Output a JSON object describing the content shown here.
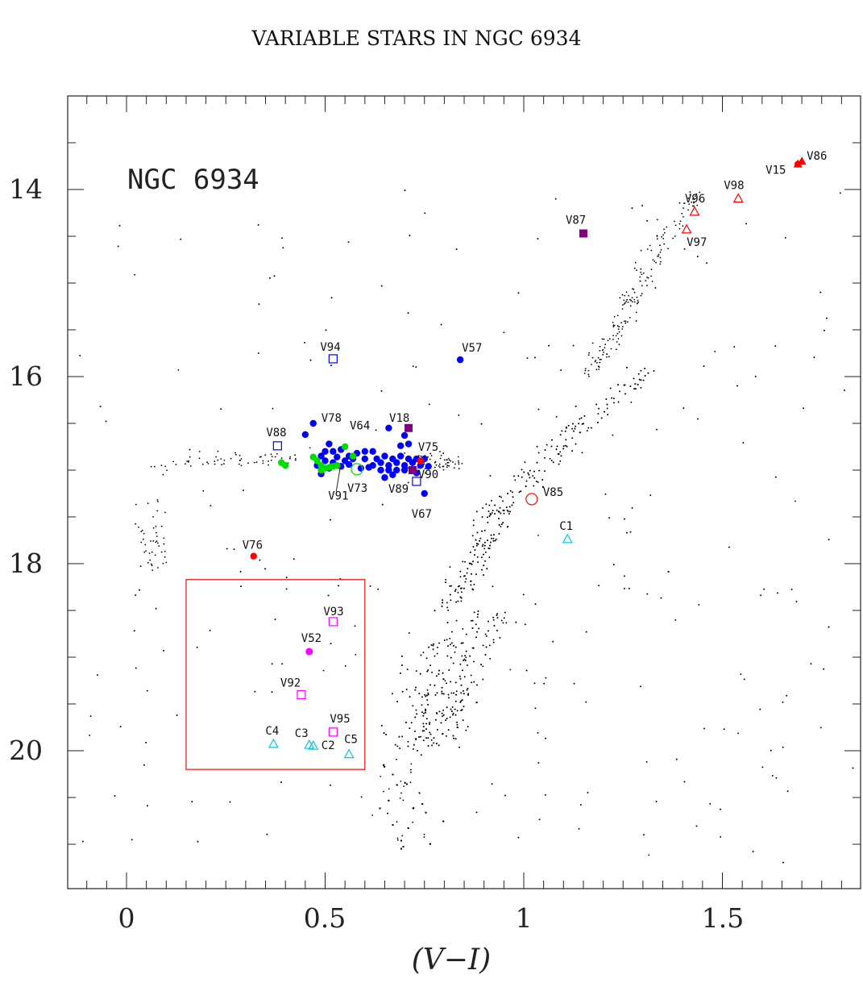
{
  "chart_data": {
    "type": "scatter",
    "title": "VARIABLE STARS IN NGC 6934",
    "xlabel": "(V−I)",
    "ylabel": "",
    "xlim": [
      -0.15,
      1.85
    ],
    "ylim": [
      21.5,
      13.0
    ],
    "y_inverted": true,
    "xticks": [
      "0",
      "0.5",
      "1",
      "1.5"
    ],
    "yticks": [
      "14",
      "16",
      "18",
      "20"
    ],
    "annotation": "NGC 6934",
    "grid": false,
    "legend": "none",
    "colors": {
      "rrab": "#0000ff",
      "rrc": "#00dd00",
      "red": "#ff0000",
      "purple": "#800080",
      "magenta": "#ff00ff",
      "cyan": "#00ccdd",
      "field": "#000000",
      "box": "#ee2222"
    },
    "box_region": {
      "x": [
        0.15,
        0.6
      ],
      "y": [
        18.17,
        20.2
      ]
    },
    "rrab_blue_filled": [
      [
        0.47,
        16.5
      ],
      [
        0.45,
        16.62
      ],
      [
        0.51,
        16.72
      ],
      [
        0.5,
        16.8
      ],
      [
        0.52,
        16.8
      ],
      [
        0.54,
        16.78
      ],
      [
        0.49,
        16.85
      ],
      [
        0.53,
        16.86
      ],
      [
        0.56,
        16.85
      ],
      [
        0.58,
        16.82
      ],
      [
        0.6,
        16.8
      ],
      [
        0.62,
        16.8
      ],
      [
        0.5,
        16.9
      ],
      [
        0.52,
        16.92
      ],
      [
        0.55,
        16.9
      ],
      [
        0.57,
        16.88
      ],
      [
        0.6,
        16.88
      ],
      [
        0.63,
        16.88
      ],
      [
        0.65,
        16.85
      ],
      [
        0.67,
        16.88
      ],
      [
        0.69,
        16.85
      ],
      [
        0.71,
        16.88
      ],
      [
        0.73,
        16.88
      ],
      [
        0.75,
        16.88
      ],
      [
        0.62,
        16.95
      ],
      [
        0.64,
        16.92
      ],
      [
        0.66,
        16.95
      ],
      [
        0.68,
        16.92
      ],
      [
        0.7,
        16.95
      ],
      [
        0.72,
        16.92
      ],
      [
        0.74,
        16.95
      ],
      [
        0.76,
        16.96
      ],
      [
        0.56,
        16.94
      ],
      [
        0.54,
        16.96
      ],
      [
        0.59,
        16.98
      ],
      [
        0.61,
        16.97
      ],
      [
        0.64,
        17.0
      ],
      [
        0.66,
        17.0
      ],
      [
        0.68,
        17.0
      ],
      [
        0.7,
        17.0
      ],
      [
        0.72,
        17.0
      ],
      [
        0.48,
        16.95
      ],
      [
        0.49,
        17.04
      ],
      [
        0.51,
        16.98
      ],
      [
        0.69,
        16.74
      ],
      [
        0.7,
        16.63
      ],
      [
        0.66,
        16.55
      ],
      [
        0.65,
        17.08
      ],
      [
        0.67,
        17.05
      ],
      [
        0.73,
        17.03
      ],
      [
        0.75,
        17.25
      ],
      [
        0.71,
        16.72
      ],
      [
        0.84,
        15.82
      ]
    ],
    "rrc_green_filled": [
      [
        0.39,
        16.92
      ],
      [
        0.4,
        16.95
      ],
      [
        0.47,
        16.86
      ],
      [
        0.48,
        16.9
      ],
      [
        0.49,
        16.95
      ],
      [
        0.5,
        16.98
      ],
      [
        0.51,
        16.97
      ],
      [
        0.53,
        16.95
      ],
      [
        0.55,
        16.75
      ],
      [
        0.57,
        16.85
      ],
      [
        0.49,
        17.0
      ],
      [
        0.52,
        16.96
      ]
    ],
    "red_filled": [
      [
        0.32,
        17.92
      ],
      [
        0.74,
        16.9
      ],
      [
        1.69,
        13.73
      ]
    ],
    "labeled_stars": [
      {
        "id": "V15",
        "x": 1.69,
        "y": 13.73,
        "shape": "filled-triangle",
        "color": "red",
        "label": "V15",
        "dx": -40,
        "dy": 12
      },
      {
        "id": "V86",
        "x": 1.7,
        "y": 13.7,
        "shape": "filled-triangle",
        "color": "red",
        "label": "V86",
        "dx": 6,
        "dy": -2
      },
      {
        "id": "V98",
        "x": 1.54,
        "y": 14.1,
        "shape": "open-triangle",
        "color": "red",
        "label": "V98",
        "dx": -18,
        "dy": -12
      },
      {
        "id": "V96",
        "x": 1.43,
        "y": 14.24,
        "shape": "open-triangle",
        "color": "red",
        "label": "V96",
        "dx": -12,
        "dy": -12
      },
      {
        "id": "V97",
        "x": 1.41,
        "y": 14.43,
        "shape": "open-triangle",
        "color": "red",
        "label": "V97",
        "dx": 0,
        "dy": 20
      },
      {
        "id": "V87",
        "x": 1.15,
        "y": 14.47,
        "shape": "filled-square",
        "color": "purple",
        "label": "V87",
        "dx": -22,
        "dy": -12
      },
      {
        "id": "V94",
        "x": 0.52,
        "y": 15.81,
        "shape": "open-square",
        "color": "rrab",
        "label": "V94",
        "dx": -16,
        "dy": -10
      },
      {
        "id": "V57",
        "x": 0.84,
        "y": 15.82,
        "shape": "none",
        "color": "rrab",
        "label": "V57",
        "dx": 2,
        "dy": -10
      },
      {
        "id": "V18",
        "x": 0.71,
        "y": 16.55,
        "shape": "filled-square",
        "color": "purple",
        "label": "V18",
        "dx": -24,
        "dy": -8
      },
      {
        "id": "V78",
        "x": 0.47,
        "y": 16.5,
        "shape": "none",
        "color": "rrab",
        "label": "V78",
        "dx": 10,
        "dy": -2
      },
      {
        "id": "V64",
        "x": 0.57,
        "y": 16.6,
        "shape": "none",
        "color": "rrab",
        "label": "V64",
        "dx": -4,
        "dy": -4
      },
      {
        "id": "V88",
        "x": 0.38,
        "y": 16.74,
        "shape": "open-square",
        "color": "rrab",
        "label": "V88",
        "dx": -14,
        "dy": -12
      },
      {
        "id": "V75",
        "x": 0.73,
        "y": 16.86,
        "shape": "none",
        "color": "rrab",
        "label": "V75",
        "dx": 2,
        "dy": -8
      },
      {
        "id": "V73",
        "x": 0.58,
        "y": 16.99,
        "shape": "open-circle",
        "color": "rrc",
        "label": "V73",
        "dx": -12,
        "dy": 28
      },
      {
        "id": "V89",
        "x": 0.72,
        "y": 17.0,
        "shape": "filled-square",
        "color": "purple",
        "label": "V89",
        "dx": -30,
        "dy": 28
      },
      {
        "id": "V90",
        "x": 0.73,
        "y": 17.12,
        "shape": "open-square",
        "color": "rrab",
        "label": "V90",
        "dx": 2,
        "dy": -4
      },
      {
        "id": "V91",
        "x": 0.54,
        "y": 16.92,
        "shape": "none",
        "color": "rrab",
        "label": "V91",
        "dx": -16,
        "dy": 46
      },
      {
        "id": "V67",
        "x": 0.75,
        "y": 17.25,
        "shape": "none",
        "color": "rrab",
        "label": "V67",
        "dx": -16,
        "dy": 30
      },
      {
        "id": "V85",
        "x": 1.02,
        "y": 17.31,
        "shape": "open-circle",
        "color": "red",
        "label": "V85",
        "dx": 14,
        "dy": -4
      },
      {
        "id": "C1",
        "x": 1.11,
        "y": 17.74,
        "shape": "open-triangle",
        "color": "cyan",
        "label": "C1",
        "dx": -10,
        "dy": -12
      },
      {
        "id": "V76",
        "x": 0.32,
        "y": 17.92,
        "shape": "none",
        "color": "red",
        "label": "V76",
        "dx": -14,
        "dy": -9
      },
      {
        "id": "V93",
        "x": 0.52,
        "y": 18.62,
        "shape": "open-square",
        "color": "magenta",
        "label": "V93",
        "dx": -12,
        "dy": -8
      },
      {
        "id": "V52",
        "x": 0.46,
        "y": 18.94,
        "shape": "filled-circle",
        "color": "magenta",
        "label": "V52",
        "dx": -10,
        "dy": -12
      },
      {
        "id": "V92",
        "x": 0.44,
        "y": 19.4,
        "shape": "open-square",
        "color": "magenta",
        "label": "V92",
        "dx": -26,
        "dy": -10
      },
      {
        "id": "V95",
        "x": 0.52,
        "y": 19.8,
        "shape": "open-square",
        "color": "magenta",
        "label": "V95",
        "dx": -4,
        "dy": -12
      },
      {
        "id": "C4",
        "x": 0.37,
        "y": 19.93,
        "shape": "open-triangle",
        "color": "cyan",
        "label": "C4",
        "dx": -10,
        "dy": -12
      },
      {
        "id": "C3",
        "x": 0.46,
        "y": 19.94,
        "shape": "open-triangle",
        "color": "cyan",
        "label": "C3",
        "dx": -18,
        "dy": -10
      },
      {
        "id": "C2",
        "x": 0.47,
        "y": 19.95,
        "shape": "open-triangle",
        "color": "cyan",
        "label": "C2",
        "dx": 10,
        "dy": 4
      },
      {
        "id": "C5",
        "x": 0.56,
        "y": 20.04,
        "shape": "open-triangle",
        "color": "cyan",
        "label": "C5",
        "dx": -6,
        "dy": -14
      }
    ]
  }
}
